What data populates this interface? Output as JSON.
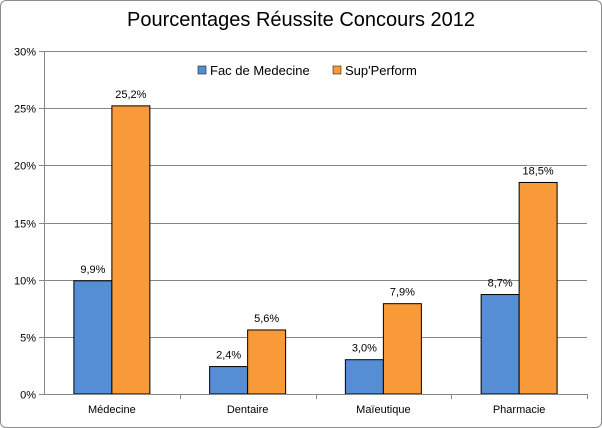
{
  "chart_data": {
    "type": "bar",
    "title": "Pourcentages Réussite Concours 2012",
    "xlabel": "",
    "ylabel": "",
    "ylim": [
      0,
      30
    ],
    "y_ticks": [
      0,
      5,
      10,
      15,
      20,
      25,
      30
    ],
    "y_tick_labels": [
      "0%",
      "5%",
      "10%",
      "15%",
      "20%",
      "25%",
      "30%"
    ],
    "grid": true,
    "legend_position": "top-right",
    "categories": [
      "Médecine",
      "Dentaire",
      "Maïeutique",
      "Pharmacie"
    ],
    "series": [
      {
        "name": "Fac de Medecine",
        "color": "#558ed5",
        "values": [
          9.9,
          2.4,
          3.0,
          8.7
        ],
        "labels": [
          "9,9%",
          "2,4%",
          "3,0%",
          "8,7%"
        ]
      },
      {
        "name": "Sup'Perform",
        "color": "#f79a37",
        "values": [
          25.2,
          5.6,
          7.9,
          18.5
        ],
        "labels": [
          "25,2%",
          "5,6%",
          "7,9%",
          "18,5%"
        ]
      }
    ]
  }
}
